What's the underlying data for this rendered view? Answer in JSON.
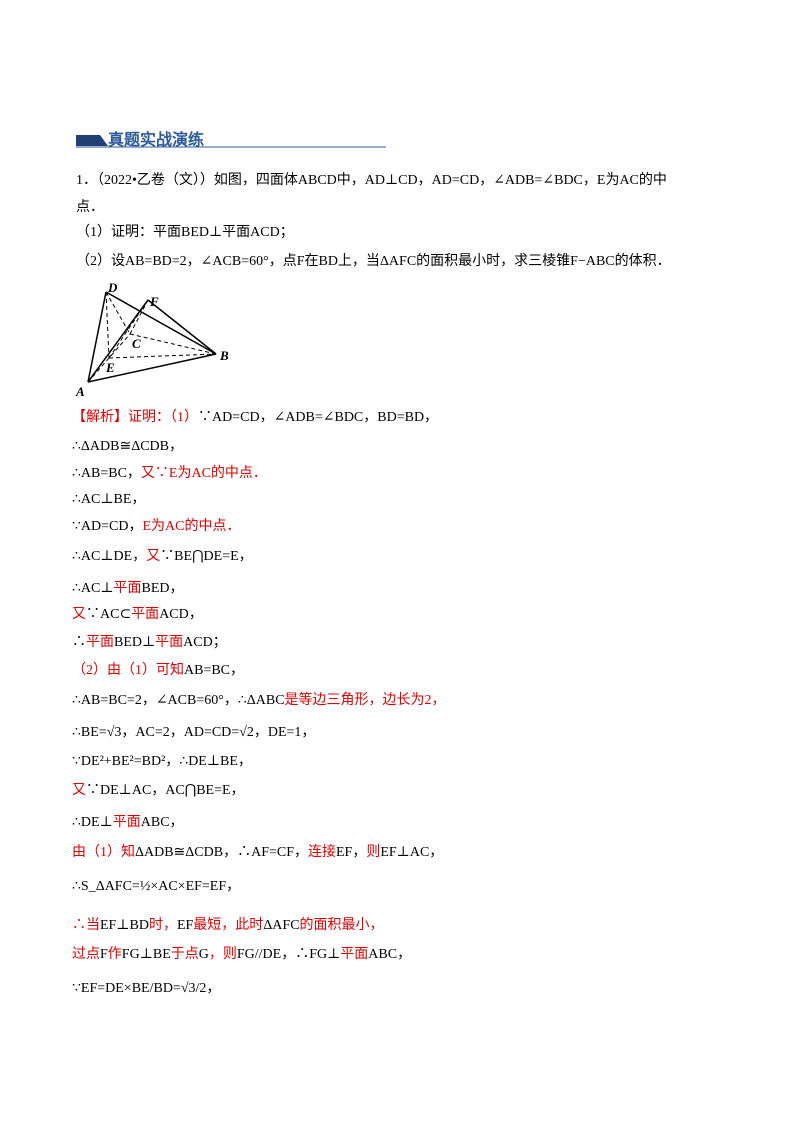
{
  "header": {
    "title": "真题实战演练"
  },
  "problem": {
    "lines": [
      [
        {
          "text": "1．（2022•乙卷（文））如图，四面体ABCD中，AD⊥CD，AD=CD，∠ADB=∠BDC，E为AC的中",
          "color": "#000000"
        }
      ],
      [
        {
          "text": "点．",
          "color": "#000000"
        }
      ],
      [
        {
          "text": "（1）证明：平面BED⊥平面ACD；",
          "color": "#000000"
        }
      ],
      [
        {
          "text": "（2）设AB=BD=2，∠ACB=60°，点F在BD上，当ΔAFC的面积最小时，求三棱锥F−ABC的体积．",
          "color": "#000000"
        }
      ]
    ]
  },
  "figure": {
    "labels": [
      "D",
      "F",
      "C",
      "B",
      "E",
      "A"
    ]
  },
  "solution": {
    "lines": [
      [
        {
          "text": "【解析】证明：（1）",
          "color": "#e00000"
        },
        {
          "text": "∵AD=CD，∠ADB=∠BDC，BD=BD，",
          "color": "#000000"
        }
      ],
      [
        {
          "text": "∴ΔADB≅ΔCDB，",
          "color": "#000000"
        }
      ],
      [
        {
          "text": "∴AB=BC，",
          "color": "#000000"
        },
        {
          "text": "又∵E为AC的中点．",
          "color": "#e00000"
        }
      ],
      [
        {
          "text": "∴AC⊥BE，",
          "color": "#000000"
        }
      ],
      [
        {
          "text": "∵AD=CD，",
          "color": "#000000"
        },
        {
          "text": "E为AC的中点．",
          "color": "#e00000"
        }
      ],
      [
        {
          "text": "∴AC⊥DE，",
          "color": "#000000"
        },
        {
          "text": "又",
          "color": "#e00000"
        },
        {
          "text": "∵BE⋂DE=E，",
          "color": "#000000"
        }
      ],
      [
        {
          "text": "∴AC⊥",
          "color": "#000000"
        },
        {
          "text": "平面",
          "color": "#e00000"
        },
        {
          "text": "BED，",
          "color": "#000000"
        }
      ],
      [
        {
          "text": "又",
          "color": "#e00000"
        },
        {
          "text": "∵AC⊂",
          "color": "#000000"
        },
        {
          "text": "平面",
          "color": "#e00000"
        },
        {
          "text": "ACD，",
          "color": "#000000"
        }
      ],
      [
        {
          "text": "∴",
          "color": "#000000"
        },
        {
          "text": "平面",
          "color": "#e00000"
        },
        {
          "text": "BED⊥",
          "color": "#000000"
        },
        {
          "text": "平面",
          "color": "#e00000"
        },
        {
          "text": "ACD；",
          "color": "#000000"
        }
      ],
      [
        {
          "text": "（2）由（1）可知",
          "color": "#e00000"
        },
        {
          "text": "AB=BC，",
          "color": "#000000"
        }
      ],
      [
        {
          "text": "∴AB=BC=2，∠ACB=60°，∴ΔABC",
          "color": "#000000"
        },
        {
          "text": "是等边三角形，边长为2，",
          "color": "#e00000"
        }
      ],
      [
        {
          "text": "∴BE=√3，AC=2，AD=CD=√2，DE=1，",
          "color": "#000000"
        }
      ],
      [
        {
          "text": "∵DE²+BE²=BD²，∴DE⊥BE，",
          "color": "#000000"
        }
      ],
      [
        {
          "text": "又",
          "color": "#e00000"
        },
        {
          "text": "∵DE⊥AC，AC⋂BE=E，",
          "color": "#000000"
        }
      ],
      [
        {
          "text": "∴DE⊥",
          "color": "#000000"
        },
        {
          "text": "平面",
          "color": "#e00000"
        },
        {
          "text": "ABC，",
          "color": "#000000"
        }
      ],
      [
        {
          "text": "由（1）知",
          "color": "#e00000"
        },
        {
          "text": "ΔADB≅ΔCDB，∴AF=CF，",
          "color": "#000000"
        },
        {
          "text": "连接",
          "color": "#e00000"
        },
        {
          "text": "EF，",
          "color": "#000000"
        },
        {
          "text": "则",
          "color": "#e00000"
        },
        {
          "text": "EF⊥AC，",
          "color": "#000000"
        }
      ],
      [
        {
          "text": "∴S_ΔAFC=½×AC×EF=EF，",
          "color": "#000000"
        }
      ],
      [
        {
          "text": "∴当",
          "color": "#e00000"
        },
        {
          "text": "EF⊥BD",
          "color": "#000000"
        },
        {
          "text": "时，",
          "color": "#e00000"
        },
        {
          "text": "EF",
          "color": "#000000"
        },
        {
          "text": "最短，此时",
          "color": "#e00000"
        },
        {
          "text": "ΔAFC",
          "color": "#000000"
        },
        {
          "text": "的面积最小，",
          "color": "#e00000"
        }
      ],
      [
        {
          "text": "过点",
          "color": "#e00000"
        },
        {
          "text": "F",
          "color": "#000000"
        },
        {
          "text": "作",
          "color": "#e00000"
        },
        {
          "text": "FG⊥BE",
          "color": "#000000"
        },
        {
          "text": "于点",
          "color": "#e00000"
        },
        {
          "text": "G",
          "color": "#000000"
        },
        {
          "text": "，则",
          "color": "#e00000"
        },
        {
          "text": "FG//DE，∴FG⊥",
          "color": "#000000"
        },
        {
          "text": "平面",
          "color": "#e00000"
        },
        {
          "text": "ABC，",
          "color": "#000000"
        }
      ],
      [
        {
          "text": "∵EF=DE×BE/BD=√3/2，",
          "color": "#000000"
        }
      ]
    ]
  }
}
